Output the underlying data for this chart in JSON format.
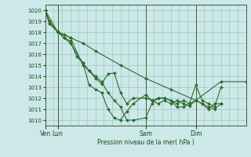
{
  "background_color": "#cce8e8",
  "grid_color": "#99ccbb",
  "line_color": "#2d6a2d",
  "marker_color": "#2d6a2d",
  "xlabel_text": "Pression niveau de la mer( hPa )",
  "ylim": [
    1009.5,
    1020.5
  ],
  "yticks": [
    1010,
    1011,
    1012,
    1013,
    1014,
    1015,
    1016,
    1017,
    1018,
    1019,
    1020
  ],
  "xtick_positions": [
    0,
    12,
    96,
    144
  ],
  "xtick_labels": [
    "Ven",
    "Lun",
    "Sam",
    "Dim"
  ],
  "total_hours": 192,
  "vline_positions": [
    0,
    12,
    96,
    144
  ],
  "series": [
    {
      "x": [
        0,
        4,
        12,
        18,
        24,
        36,
        42,
        48,
        54,
        60,
        66,
        72,
        78,
        84,
        96,
        102,
        108,
        114,
        120,
        126,
        132,
        138,
        144,
        150,
        156,
        162,
        168
      ],
      "y": [
        1020.0,
        1019.0,
        1018.0,
        1017.8,
        1017.5,
        1015.0,
        1014.5,
        1013.8,
        1013.3,
        1014.2,
        1014.3,
        1012.5,
        1011.5,
        1012.0,
        1012.0,
        1011.8,
        1012.0,
        1012.0,
        1011.8,
        1011.2,
        1011.2,
        1011.5,
        1013.2,
        1011.8,
        1011.5,
        1011.2,
        1013.0
      ]
    },
    {
      "x": [
        0,
        4,
        12,
        18,
        24,
        36,
        42,
        48,
        54,
        60,
        66,
        72,
        78,
        84,
        96,
        102,
        108,
        114,
        120,
        126,
        132,
        138,
        144,
        150,
        156,
        162,
        168
      ],
      "y": [
        1020.0,
        1018.8,
        1018.1,
        1017.5,
        1017.0,
        1015.2,
        1013.2,
        1012.8,
        1012.5,
        1011.0,
        1010.2,
        1010.0,
        1010.8,
        1011.5,
        1012.3,
        1011.8,
        1011.5,
        1011.8,
        1011.5,
        1011.8,
        1011.5,
        1011.3,
        1011.8,
        1011.5,
        1011.2,
        1011.0,
        1011.5
      ]
    },
    {
      "x": [
        0,
        12,
        24,
        36,
        48,
        72,
        96,
        120,
        144,
        168,
        192
      ],
      "y": [
        1020.0,
        1018.0,
        1017.5,
        1017.0,
        1016.3,
        1015.0,
        1013.8,
        1012.8,
        1011.8,
        1013.5,
        1013.5
      ]
    },
    {
      "x": [
        0,
        4,
        12,
        18,
        24,
        30,
        36,
        42,
        48,
        54,
        60,
        66,
        72,
        78,
        84,
        96,
        102,
        108,
        114,
        120,
        126,
        132,
        138,
        144,
        150,
        156,
        162,
        168
      ],
      "y": [
        1020.0,
        1018.8,
        1018.0,
        1017.5,
        1017.2,
        1015.8,
        1015.2,
        1014.5,
        1014.0,
        1013.5,
        1012.5,
        1011.8,
        1011.2,
        1010.0,
        1010.0,
        1010.2,
        1011.5,
        1012.0,
        1012.0,
        1011.8,
        1011.5,
        1011.8,
        1011.5,
        1011.8,
        1011.5,
        1011.0,
        1011.5,
        1011.5
      ]
    }
  ]
}
